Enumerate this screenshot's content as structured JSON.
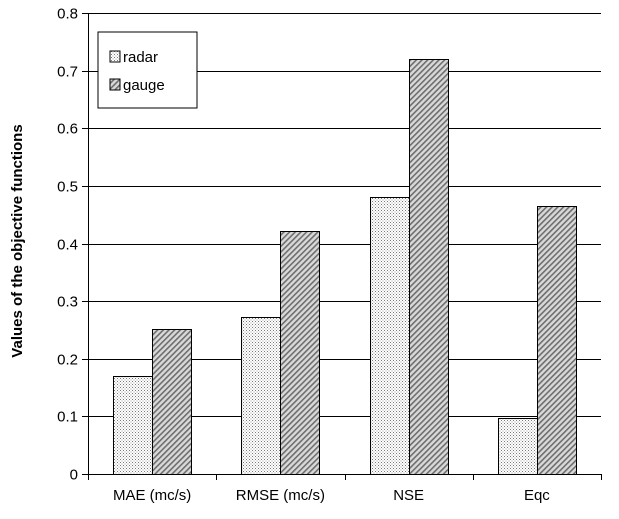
{
  "chart_data": {
    "type": "bar",
    "title": "",
    "xlabel": "",
    "ylabel": "Values of the objective functions",
    "categories": [
      "MAE (mc/s)",
      "RMSE (mc/s)",
      "NSE",
      "Eqc"
    ],
    "series": [
      {
        "name": "radar",
        "values": [
          0.17,
          0.273,
          0.48,
          0.097
        ],
        "fill": "#ffffff",
        "pattern": "fine-dots"
      },
      {
        "name": "gauge",
        "values": [
          0.252,
          0.421,
          0.72,
          0.465
        ],
        "fill": "#c0c0c0",
        "pattern": "diagonal-hatch"
      }
    ],
    "ylim": [
      0,
      0.8
    ],
    "yticks": [
      0,
      0.1,
      0.2,
      0.3,
      0.4,
      0.5,
      0.6,
      0.7,
      0.8
    ],
    "ytick_labels": [
      "0",
      "0.1",
      "0.2",
      "0.3",
      "0.4",
      "0.5",
      "0.6",
      "0.7",
      "0.8"
    ],
    "grid": "horizontal",
    "legend_position": "top-left"
  }
}
